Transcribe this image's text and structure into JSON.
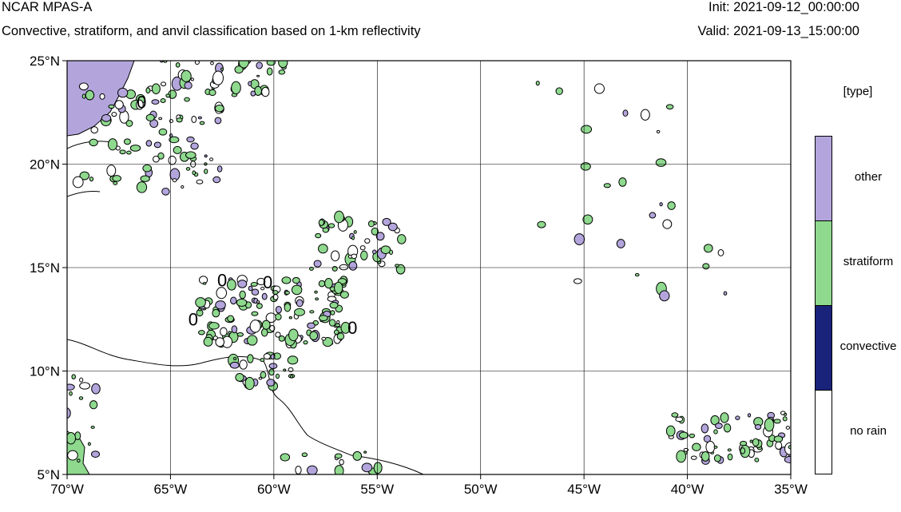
{
  "header": {
    "title": "NCAR MPAS-A",
    "subtitle": "Convective, stratiform, and anvil classification based on 1-km reflectivity",
    "init": "Init: 2021-09-12_00:00:00",
    "valid": "Valid: 2021-09-13_15:00:00"
  },
  "map": {
    "lon_range": [
      -70,
      -35
    ],
    "lat_range": [
      5,
      25
    ],
    "x_ticks": [
      {
        "lon": -70,
        "label": "70°W"
      },
      {
        "lon": -65,
        "label": "65°W"
      },
      {
        "lon": -60,
        "label": "60°W"
      },
      {
        "lon": -55,
        "label": "55°W"
      },
      {
        "lon": -50,
        "label": "50°W"
      },
      {
        "lon": -45,
        "label": "45°W"
      },
      {
        "lon": -40,
        "label": "40°W"
      },
      {
        "lon": -35,
        "label": "35°W"
      }
    ],
    "y_ticks": [
      {
        "lat": 25,
        "label": "25°N"
      },
      {
        "lat": 20,
        "label": "20°N"
      },
      {
        "lat": 15,
        "label": "15°N"
      },
      {
        "lat": 10,
        "label": "10°N"
      },
      {
        "lat": 5,
        "label": "5°N"
      }
    ],
    "gridlines": true,
    "contour_labels": [
      {
        "lon": -66.4,
        "lat": 22.7,
        "text": "0"
      },
      {
        "lon": -62.5,
        "lat": 14.1,
        "text": "0"
      },
      {
        "lon": -60.3,
        "lat": 14.0,
        "text": "0"
      },
      {
        "lon": -63.9,
        "lat": 12.2,
        "text": "0"
      },
      {
        "lon": -56.2,
        "lat": 11.8,
        "text": "0"
      }
    ]
  },
  "legend": {
    "title": "[type]",
    "items": [
      {
        "label": "other",
        "color": "#b3a5dc"
      },
      {
        "label": "stratiform",
        "color": "#8ed98e"
      },
      {
        "label": "convective",
        "color": "#1a237a"
      },
      {
        "label": "no rain",
        "color": "#ffffff"
      }
    ]
  }
}
